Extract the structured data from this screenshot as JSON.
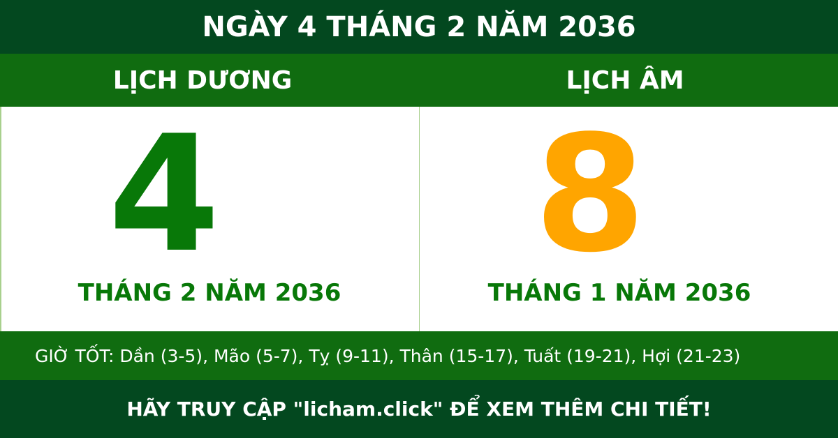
{
  "title": "NGÀY 4 THÁNG 2 NĂM 2036",
  "solar": {
    "heading": "LỊCH DƯƠNG",
    "day": "4",
    "month_year": "THÁNG 2 NĂM 2036"
  },
  "lunar": {
    "heading": "LỊCH ÂM",
    "day": "8",
    "month_year": "THÁNG 1 NĂM 2036"
  },
  "good_hours": "GIỜ TỐT: Dần (3-5), Mão (5-7), Tỵ (9-11), Thân (15-17), Tuất (19-21), Hợi (21-23)",
  "footer": "HÃY TRUY CẬP \"licham.click\" ĐỂ XEM THÊM CHI TIẾT!",
  "colors": {
    "dark_green": "#03481f",
    "green": "#106c10",
    "solar_digit": "#087808",
    "lunar_digit": "#ffa500"
  }
}
